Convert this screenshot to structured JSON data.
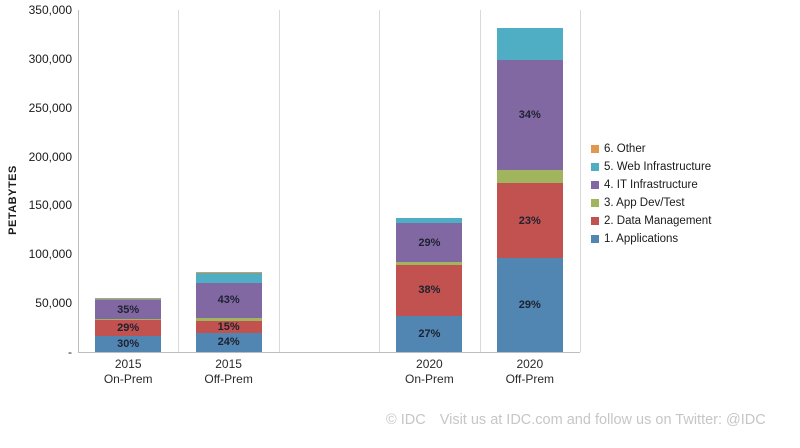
{
  "chart_data": {
    "type": "bar",
    "stacked": true,
    "title": "",
    "xlabel": "",
    "ylabel": "PETABYTES",
    "ylim": [
      0,
      350000
    ],
    "ytick_labels": [
      "-",
      "50,000",
      "100,000",
      "150,000",
      "200,000",
      "250,000",
      "300,000",
      "350,000"
    ],
    "grid": "vertical-category-separators-only",
    "legend_position": "right",
    "series_stack_order_bottom_to_top": [
      "1. Applications",
      "2. Data Management",
      "3. App Dev/Test",
      "4. IT Infrastructure",
      "5. Web Infrastructure",
      "6. Other"
    ],
    "legend": [
      {
        "label": "6. Other",
        "color": "#e0984e"
      },
      {
        "label": "5. Web Infrastructure",
        "color": "#4fadc4"
      },
      {
        "label": "4. IT Infrastructure",
        "color": "#8268a2"
      },
      {
        "label": "3. App Dev/Test",
        "color": "#a1b45e"
      },
      {
        "label": "2. Data Management",
        "color": "#c2524f"
      },
      {
        "label": "1. Applications",
        "color": "#5185b2"
      }
    ],
    "bars": [
      {
        "category": [
          "2015",
          "On-Prem"
        ],
        "total_petabytes": 55000,
        "segments": [
          {
            "series": "1. Applications",
            "color": "#5185b2",
            "pct": 30,
            "label": "30%"
          },
          {
            "series": "2. Data Management",
            "color": "#c2524f",
            "pct": 29,
            "label": "29%"
          },
          {
            "series": "3. App Dev/Test",
            "color": "#a1b45e",
            "pct": 2,
            "label": ""
          },
          {
            "series": "4. IT Infrastructure",
            "color": "#8268a2",
            "pct": 35,
            "label": "35%"
          },
          {
            "series": "5. Web Infrastructure",
            "color": "#4fadc4",
            "pct": 3,
            "label": ""
          },
          {
            "series": "6. Other",
            "color": "#e0984e",
            "pct": 1,
            "label": ""
          }
        ]
      },
      {
        "category": [
          "2015",
          "Off-Prem"
        ],
        "total_petabytes": 82000,
        "segments": [
          {
            "series": "1. Applications",
            "color": "#5185b2",
            "pct": 24,
            "label": "24%"
          },
          {
            "series": "2. Data Management",
            "color": "#c2524f",
            "pct": 15,
            "label": "15%"
          },
          {
            "series": "3. App Dev/Test",
            "color": "#a1b45e",
            "pct": 4,
            "label": ""
          },
          {
            "series": "4. IT Infrastructure",
            "color": "#8268a2",
            "pct": 43,
            "label": "43%"
          },
          {
            "series": "5. Web Infrastructure",
            "color": "#4fadc4",
            "pct": 13,
            "label": ""
          },
          {
            "series": "6. Other",
            "color": "#e0984e",
            "pct": 1,
            "label": ""
          }
        ]
      },
      {
        "category": [
          "",
          ""
        ],
        "total_petabytes": 0,
        "segments": []
      },
      {
        "category": [
          "2020",
          "On-Prem"
        ],
        "total_petabytes": 137000,
        "segments": [
          {
            "series": "1. Applications",
            "color": "#5185b2",
            "pct": 27,
            "label": "27%"
          },
          {
            "series": "2. Data Management",
            "color": "#c2524f",
            "pct": 38,
            "label": "38%"
          },
          {
            "series": "3. App Dev/Test",
            "color": "#a1b45e",
            "pct": 2,
            "label": ""
          },
          {
            "series": "4. IT Infrastructure",
            "color": "#8268a2",
            "pct": 29,
            "label": "29%"
          },
          {
            "series": "5. Web Infrastructure",
            "color": "#4fadc4",
            "pct": 4,
            "label": ""
          }
        ]
      },
      {
        "category": [
          "2020",
          "Off-Prem"
        ],
        "total_petabytes": 332000,
        "segments": [
          {
            "series": "1. Applications",
            "color": "#5185b2",
            "pct": 29,
            "label": "29%"
          },
          {
            "series": "2. Data Management",
            "color": "#c2524f",
            "pct": 23,
            "label": "23%"
          },
          {
            "series": "3. App Dev/Test",
            "color": "#a1b45e",
            "pct": 4,
            "label": ""
          },
          {
            "series": "4. IT Infrastructure",
            "color": "#8268a2",
            "pct": 34,
            "label": "34%"
          },
          {
            "series": "5. Web Infrastructure",
            "color": "#4fadc4",
            "pct": 10,
            "label": ""
          }
        ]
      }
    ]
  },
  "footer": {
    "copyright": "© IDC",
    "text": "Visit us at IDC.com and follow us on Twitter: @IDC"
  }
}
